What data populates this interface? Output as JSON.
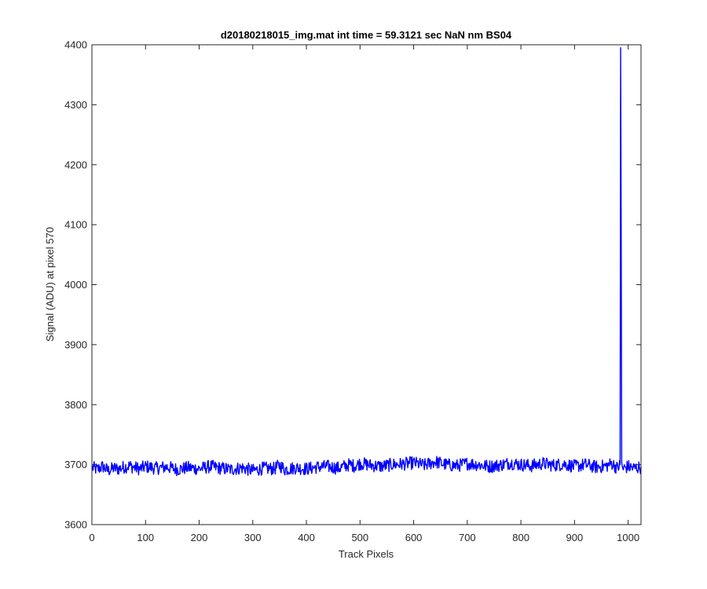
{
  "chart_data": {
    "type": "line",
    "title": "d20180218015_img.mat int time = 59.3121 sec  NaN nm BS04",
    "xlabel": "Track Pixels",
    "ylabel": "Signal (ADU) at pixel 570",
    "xlim": [
      0,
      1024
    ],
    "ylim": [
      3600,
      4400
    ],
    "xticks": [
      0,
      100,
      200,
      300,
      400,
      500,
      600,
      700,
      800,
      900,
      1000
    ],
    "yticks": [
      3600,
      3700,
      3800,
      3900,
      4000,
      4100,
      4200,
      4300,
      4400
    ],
    "grid": false,
    "legend": "none",
    "series": [
      {
        "color": "#0000ff",
        "x": [
          1,
          10,
          20,
          30,
          40,
          50,
          60,
          70,
          80,
          90,
          100,
          120,
          140,
          160,
          180,
          200,
          220,
          240,
          260,
          280,
          300,
          320,
          340,
          350,
          360,
          380,
          400,
          420,
          440,
          460,
          480,
          490,
          500,
          520,
          540,
          560,
          580,
          600,
          620,
          640,
          660,
          680,
          700,
          720,
          740,
          760,
          780,
          800,
          820,
          840,
          860,
          880,
          900,
          920,
          940,
          960,
          970,
          980,
          985,
          986,
          987,
          988,
          990,
          1000,
          1010,
          1024
        ],
        "y": [
          3695,
          3692,
          3697,
          3690,
          3694,
          3693,
          3696,
          3698,
          3695,
          3693,
          3697,
          3694,
          3696,
          3692,
          3695,
          3693,
          3697,
          3694,
          3692,
          3695,
          3690,
          3694,
          3693,
          3699,
          3692,
          3695,
          3693,
          3696,
          3697,
          3694,
          3700,
          3698,
          3702,
          3699,
          3697,
          3700,
          3701,
          3703,
          3699,
          3705,
          3700,
          3698,
          3702,
          3700,
          3697,
          3699,
          3703,
          3700,
          3698,
          3702,
          3699,
          3701,
          3697,
          3700,
          3696,
          3698,
          3702,
          3694,
          3700,
          4395,
          4100,
          3700,
          3693,
          3697,
          3694,
          3696
        ]
      }
    ]
  }
}
